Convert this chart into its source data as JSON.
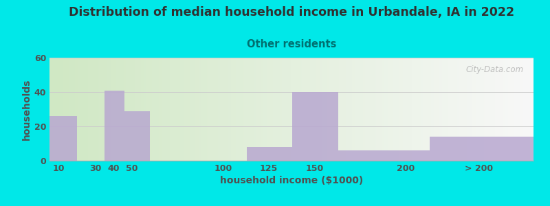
{
  "title": "Distribution of median household income in Urbandale, IA in 2022",
  "subtitle": "Other residents",
  "xlabel": "household income ($1000)",
  "ylabel": "households",
  "bar_values": [
    26,
    0,
    41,
    29,
    0,
    8,
    40,
    6,
    14
  ],
  "bar_left": [
    5,
    20,
    35,
    46,
    60,
    113,
    138,
    163,
    213
  ],
  "bar_right": [
    20,
    35,
    46,
    60,
    113,
    138,
    163,
    213,
    270
  ],
  "tick_positions": [
    10,
    30,
    40,
    50,
    100,
    125,
    150,
    200,
    240
  ],
  "tick_labels": [
    "10",
    "30",
    "40",
    "50",
    "100",
    "125",
    "150",
    "200",
    "> 200"
  ],
  "ylim": [
    0,
    60
  ],
  "xlim": [
    5,
    270
  ],
  "yticks": [
    0,
    20,
    40,
    60
  ],
  "bar_color": "#b8a8d0",
  "bg_outer": "#00e8e8",
  "bg_plot": "#e4f0dc",
  "title_color": "#303030",
  "subtitle_color": "#007070",
  "axis_label_color": "#505050",
  "tick_color": "#505050",
  "watermark": "City-Data.com",
  "title_fontsize": 12.5,
  "subtitle_fontsize": 10.5,
  "label_fontsize": 10,
  "tick_fontsize": 9
}
